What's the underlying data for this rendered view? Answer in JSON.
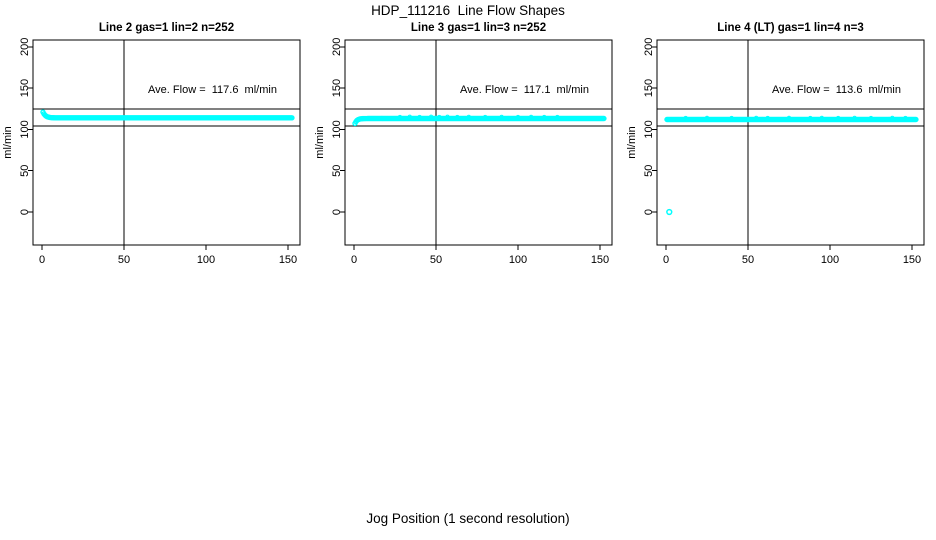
{
  "figure": {
    "title": "HDP_111216  Line Flow Shapes",
    "xlabel": "Jog Position (1 second resolution)"
  },
  "colors": {
    "series": "#00FFFF",
    "axis": "#000000",
    "background": "#FFFFFF"
  },
  "axes": {
    "ylabel": "ml/min",
    "y_ticks": [
      0,
      50,
      100,
      150,
      200
    ],
    "x_ticks": [
      0,
      50,
      100,
      150
    ],
    "x_range": [
      0,
      150
    ],
    "y_range": [
      0,
      200
    ],
    "vline_x": 50,
    "ref_lines": [
      125,
      104
    ],
    "grid": false
  },
  "chart_data": [
    {
      "type": "scatter",
      "title": "Line 2 gas=1 lin=2 n=252",
      "annotation": "Ave. Flow =  117.6  ml/min",
      "ave_flow_ml_min": 117.6,
      "n": 252,
      "series": {
        "steady_value": 114,
        "from": 0.6,
        "to": 152.5,
        "step": 0.6,
        "transient_amp": 7,
        "transient_tau": 1.6
      },
      "scatter_above": [],
      "outliers": []
    },
    {
      "type": "scatter",
      "title": "Line 3 gas=1 lin=3 n=252",
      "annotation": "Ave. Flow =  117.1  ml/min",
      "ave_flow_ml_min": 117.1,
      "n": 252,
      "series": {
        "steady_value": 113.2,
        "from": 0.6,
        "to": 152.5,
        "step": 0.6,
        "transient_amp": -6,
        "transient_tau": 1.3
      },
      "scatter_above": [
        [
          28,
          115.2
        ],
        [
          34,
          115.4
        ],
        [
          40,
          115.2
        ],
        [
          47,
          115.4
        ],
        [
          52,
          115.2
        ],
        [
          57,
          115.4
        ],
        [
          63,
          115.2
        ],
        [
          70,
          115.3
        ],
        [
          80,
          115.1
        ],
        [
          90,
          115.3
        ],
        [
          100,
          115.1
        ],
        [
          108,
          115.3
        ],
        [
          116,
          115.1
        ],
        [
          124,
          115.2
        ]
      ],
      "outliers": []
    },
    {
      "type": "scatter",
      "title": "Line 4 (LT) gas=1 lin=4 n=3",
      "annotation": "Ave. Flow =  113.6  ml/min",
      "ave_flow_ml_min": 113.6,
      "n": 3,
      "series": {
        "steady_value": 112,
        "from": 0.6,
        "to": 152.5,
        "step": 0.6,
        "transient_amp": 0,
        "transient_tau": 1
      },
      "scatter_above": [
        [
          12,
          113.9
        ],
        [
          25,
          114.1
        ],
        [
          40,
          113.9
        ],
        [
          55,
          114.1
        ],
        [
          62,
          113.9
        ],
        [
          75,
          114.1
        ],
        [
          88,
          113.9
        ],
        [
          95,
          114.1
        ],
        [
          105,
          113.9
        ],
        [
          115,
          114.1
        ],
        [
          125,
          113.9
        ],
        [
          138,
          114.1
        ],
        [
          146,
          113.9
        ]
      ],
      "outliers": [
        [
          2,
          0
        ]
      ]
    }
  ]
}
